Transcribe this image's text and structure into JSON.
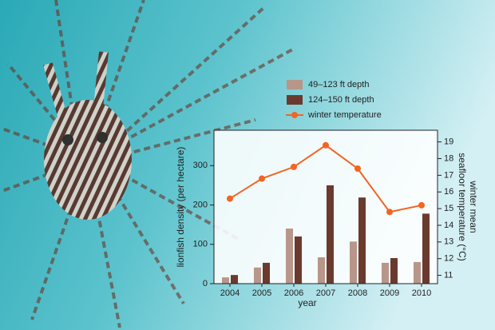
{
  "chart_data": {
    "type": "bar",
    "categories": [
      "2004",
      "2005",
      "2006",
      "2007",
      "2008",
      "2009",
      "2010"
    ],
    "xlabel": "year",
    "ylabel": "lionfish density (per hectare)",
    "y2label": [
      "winter mean",
      "seafloor temperature (°C)"
    ],
    "ylim": [
      0,
      390
    ],
    "yticks": [
      0,
      100,
      200,
      300
    ],
    "y2lim": [
      10.5,
      19.7
    ],
    "y2ticks": [
      11,
      12,
      13,
      14,
      15,
      16,
      17,
      18,
      19
    ],
    "series": [
      {
        "name": "49–123 ft depth",
        "color": "#b8968a",
        "values": [
          16,
          41,
          140,
          67,
          107,
          53,
          55
        ]
      },
      {
        "name": "124–150 ft depth",
        "color": "#6b3a2e",
        "values": [
          22,
          53,
          120,
          250,
          219,
          65,
          178
        ]
      },
      {
        "name": "winter temperature",
        "color": "#f26522",
        "type": "line",
        "axis": "y2",
        "values": [
          15.6,
          16.8,
          17.5,
          18.8,
          17.4,
          14.8,
          15.2
        ]
      }
    ]
  }
}
